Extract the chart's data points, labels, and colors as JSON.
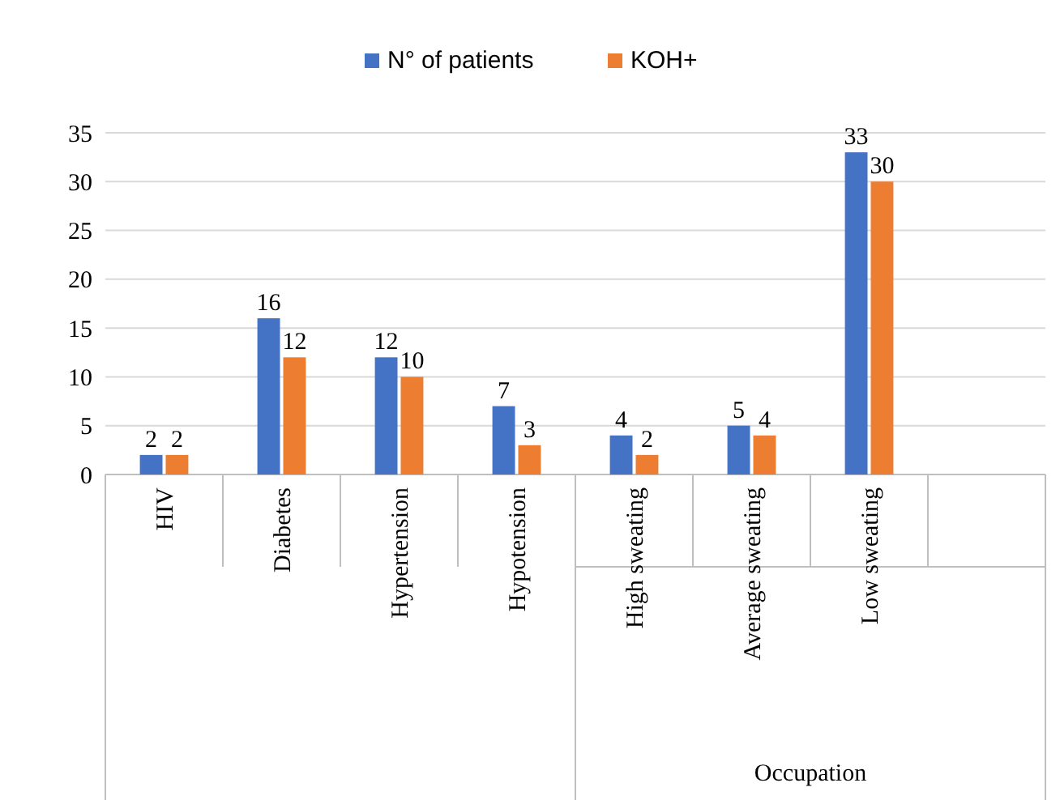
{
  "chart_data": {
    "type": "bar",
    "categories": [
      "HIV",
      "Diabetes",
      "Hypertension",
      "Hypotension",
      "High sweating",
      "Average sweating",
      "Low sweating",
      null
    ],
    "series": [
      {
        "name": "N° of patients",
        "color": "#4472c4",
        "values": [
          2,
          16,
          12,
          7,
          4,
          5,
          33,
          null
        ]
      },
      {
        "name": "KOH+",
        "color": "#ed7d31",
        "values": [
          2,
          12,
          10,
          3,
          2,
          4,
          30,
          null
        ]
      }
    ],
    "ylim": [
      0,
      35
    ],
    "yticks": [
      0,
      5,
      10,
      15,
      20,
      25,
      30,
      35
    ],
    "grid": "y",
    "legend": "top",
    "data_labels": true,
    "annotations": [
      "Occupation"
    ]
  }
}
